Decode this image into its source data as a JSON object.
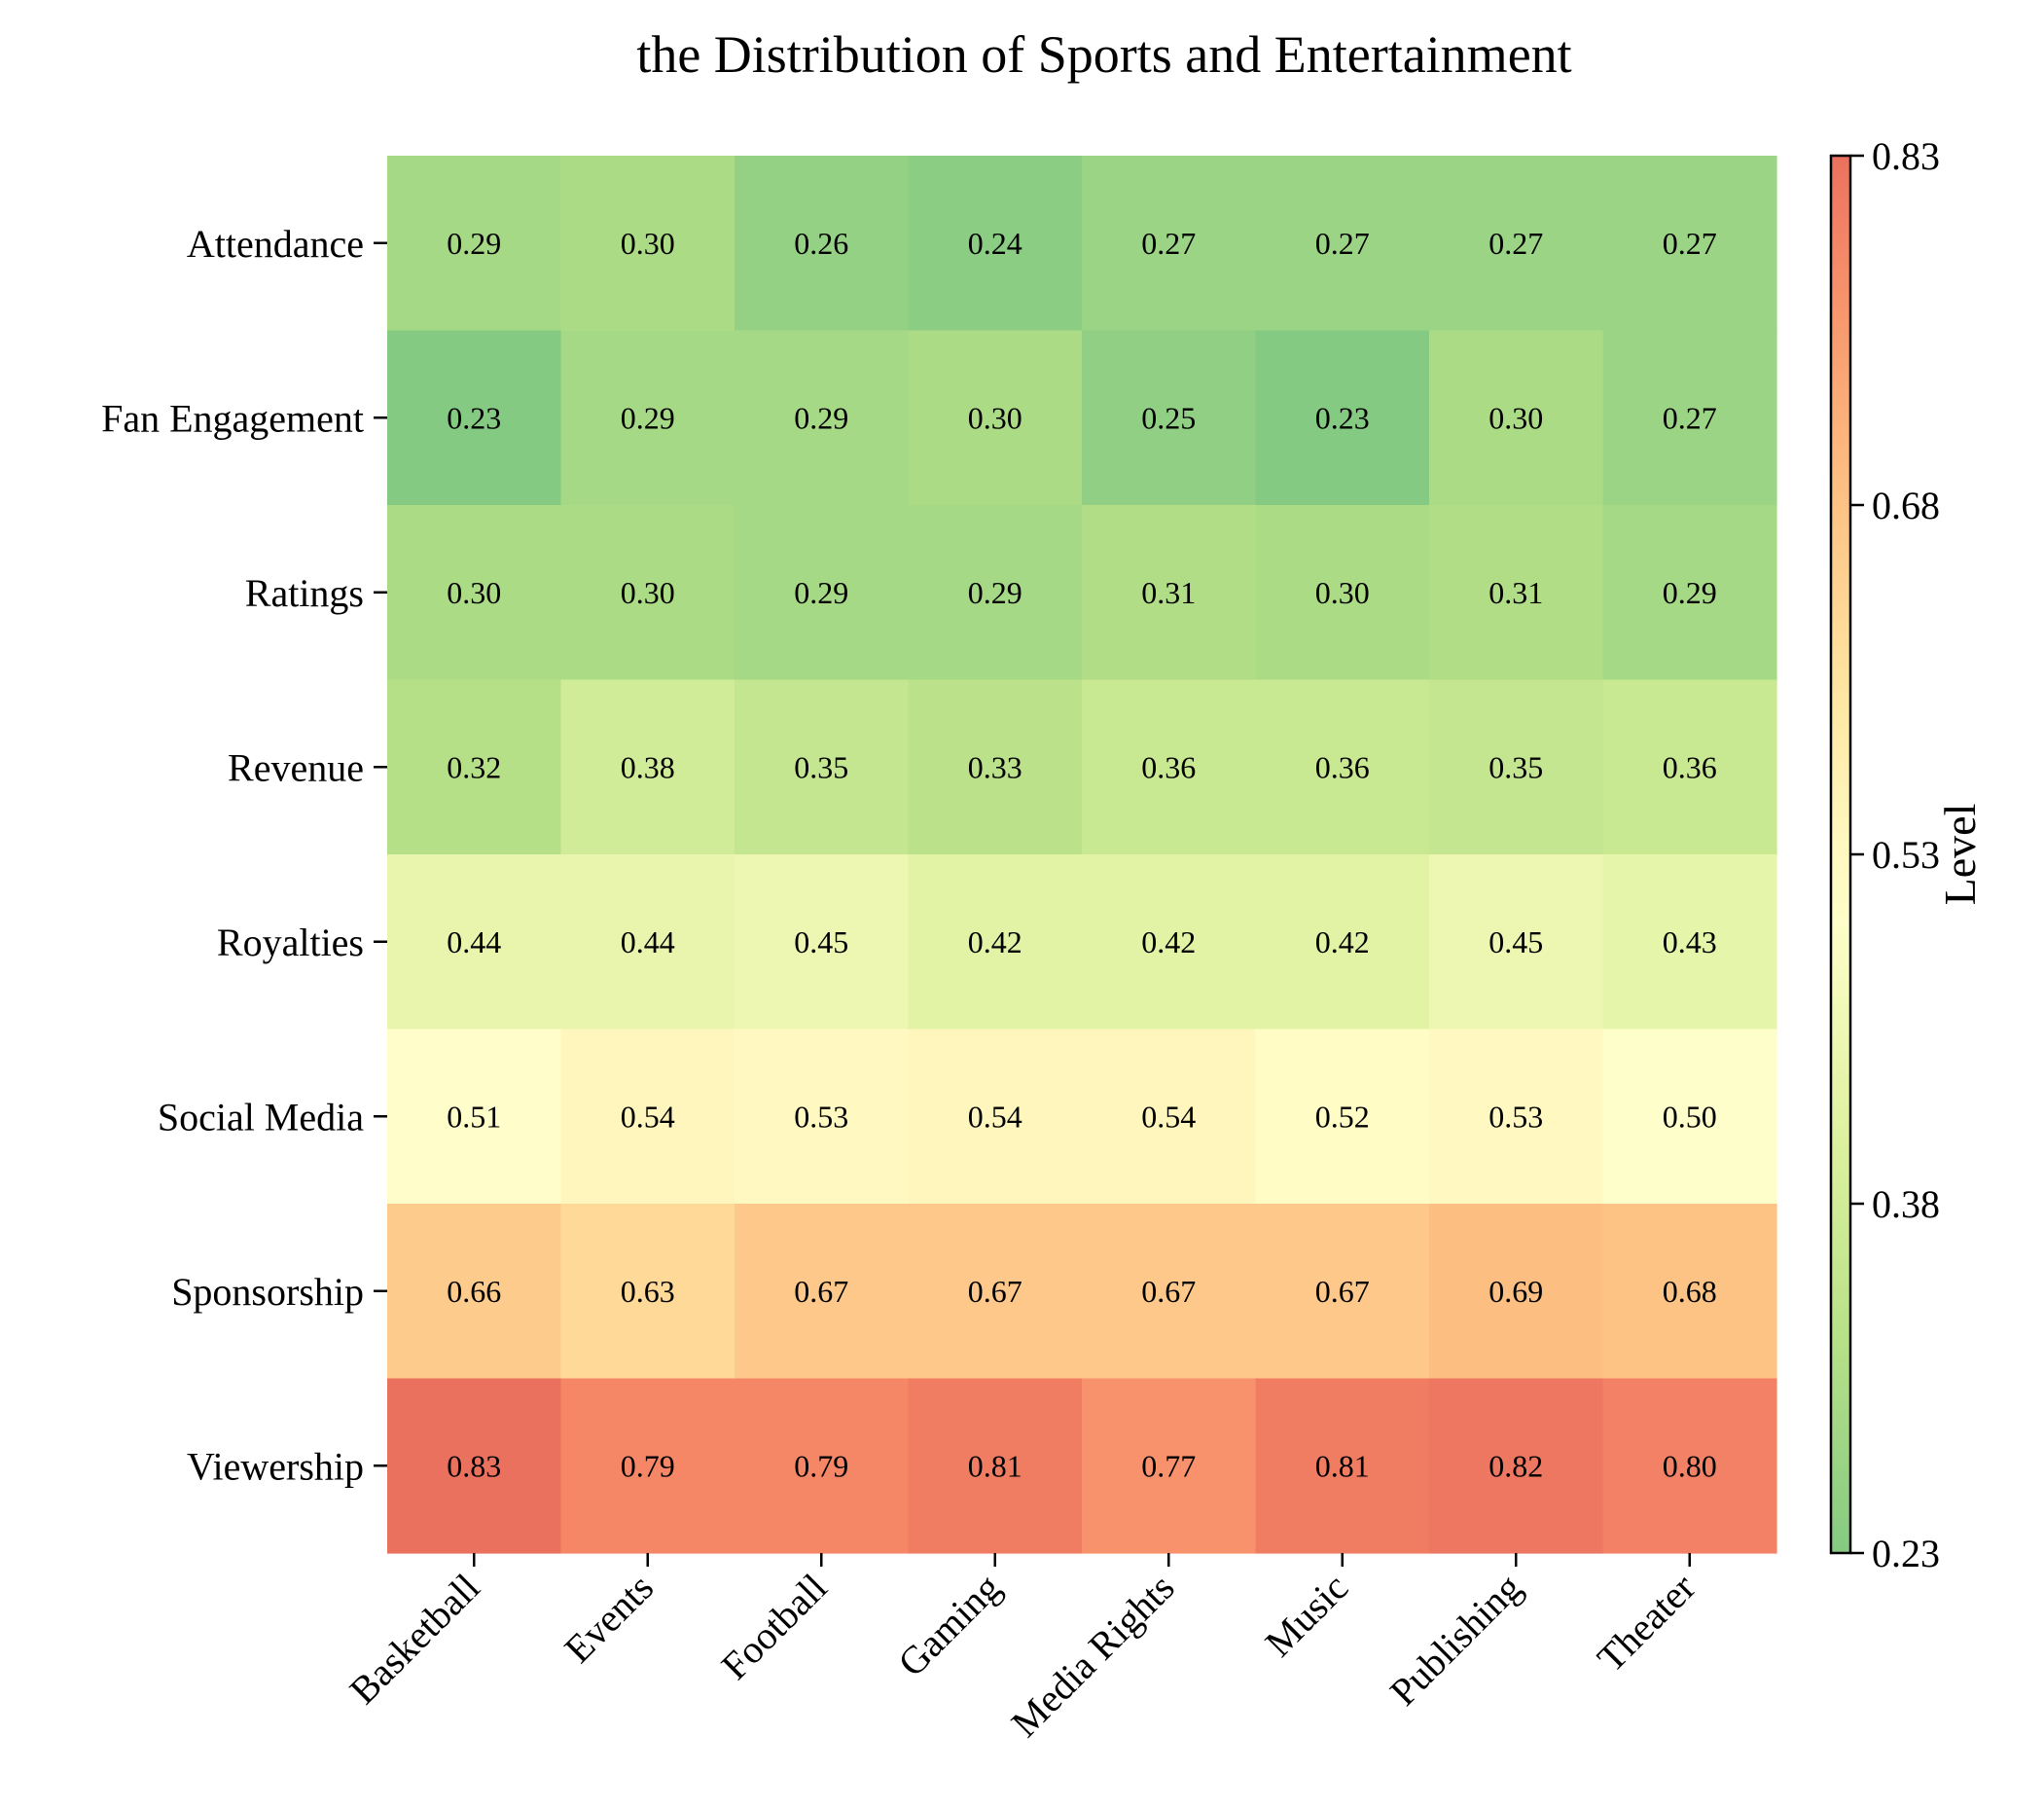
{
  "chart_data": {
    "type": "heatmap",
    "title": "the Distribution of Sports and Entertainment",
    "x_categories": [
      "Basketball",
      "Events",
      "Football",
      "Gaming",
      "Media Rights",
      "Music",
      "Publishing",
      "Theater"
    ],
    "y_categories": [
      "Attendance",
      "Fan Engagement",
      "Ratings",
      "Revenue",
      "Royalties",
      "Social Media",
      "Sponsorship",
      "Viewership"
    ],
    "values": [
      [
        0.29,
        0.3,
        0.26,
        0.24,
        0.27,
        0.27,
        0.27,
        0.27
      ],
      [
        0.23,
        0.29,
        0.29,
        0.3,
        0.25,
        0.23,
        0.3,
        0.27
      ],
      [
        0.3,
        0.3,
        0.29,
        0.29,
        0.31,
        0.3,
        0.31,
        0.29
      ],
      [
        0.32,
        0.38,
        0.35,
        0.33,
        0.36,
        0.36,
        0.35,
        0.36
      ],
      [
        0.44,
        0.44,
        0.45,
        0.42,
        0.42,
        0.42,
        0.45,
        0.43
      ],
      [
        0.51,
        0.54,
        0.53,
        0.54,
        0.54,
        0.52,
        0.53,
        0.5
      ],
      [
        0.66,
        0.63,
        0.67,
        0.67,
        0.67,
        0.67,
        0.69,
        0.68
      ],
      [
        0.83,
        0.79,
        0.79,
        0.81,
        0.77,
        0.81,
        0.82,
        0.8
      ]
    ],
    "value_format": "2 decimals",
    "colormap": "RdYlGn_r",
    "colorbar": {
      "label": "Level",
      "min": 0.23,
      "max": 0.83,
      "ticks": [
        "0.23",
        "0.38",
        "0.53",
        "0.68",
        "0.83"
      ]
    },
    "grid": false
  }
}
